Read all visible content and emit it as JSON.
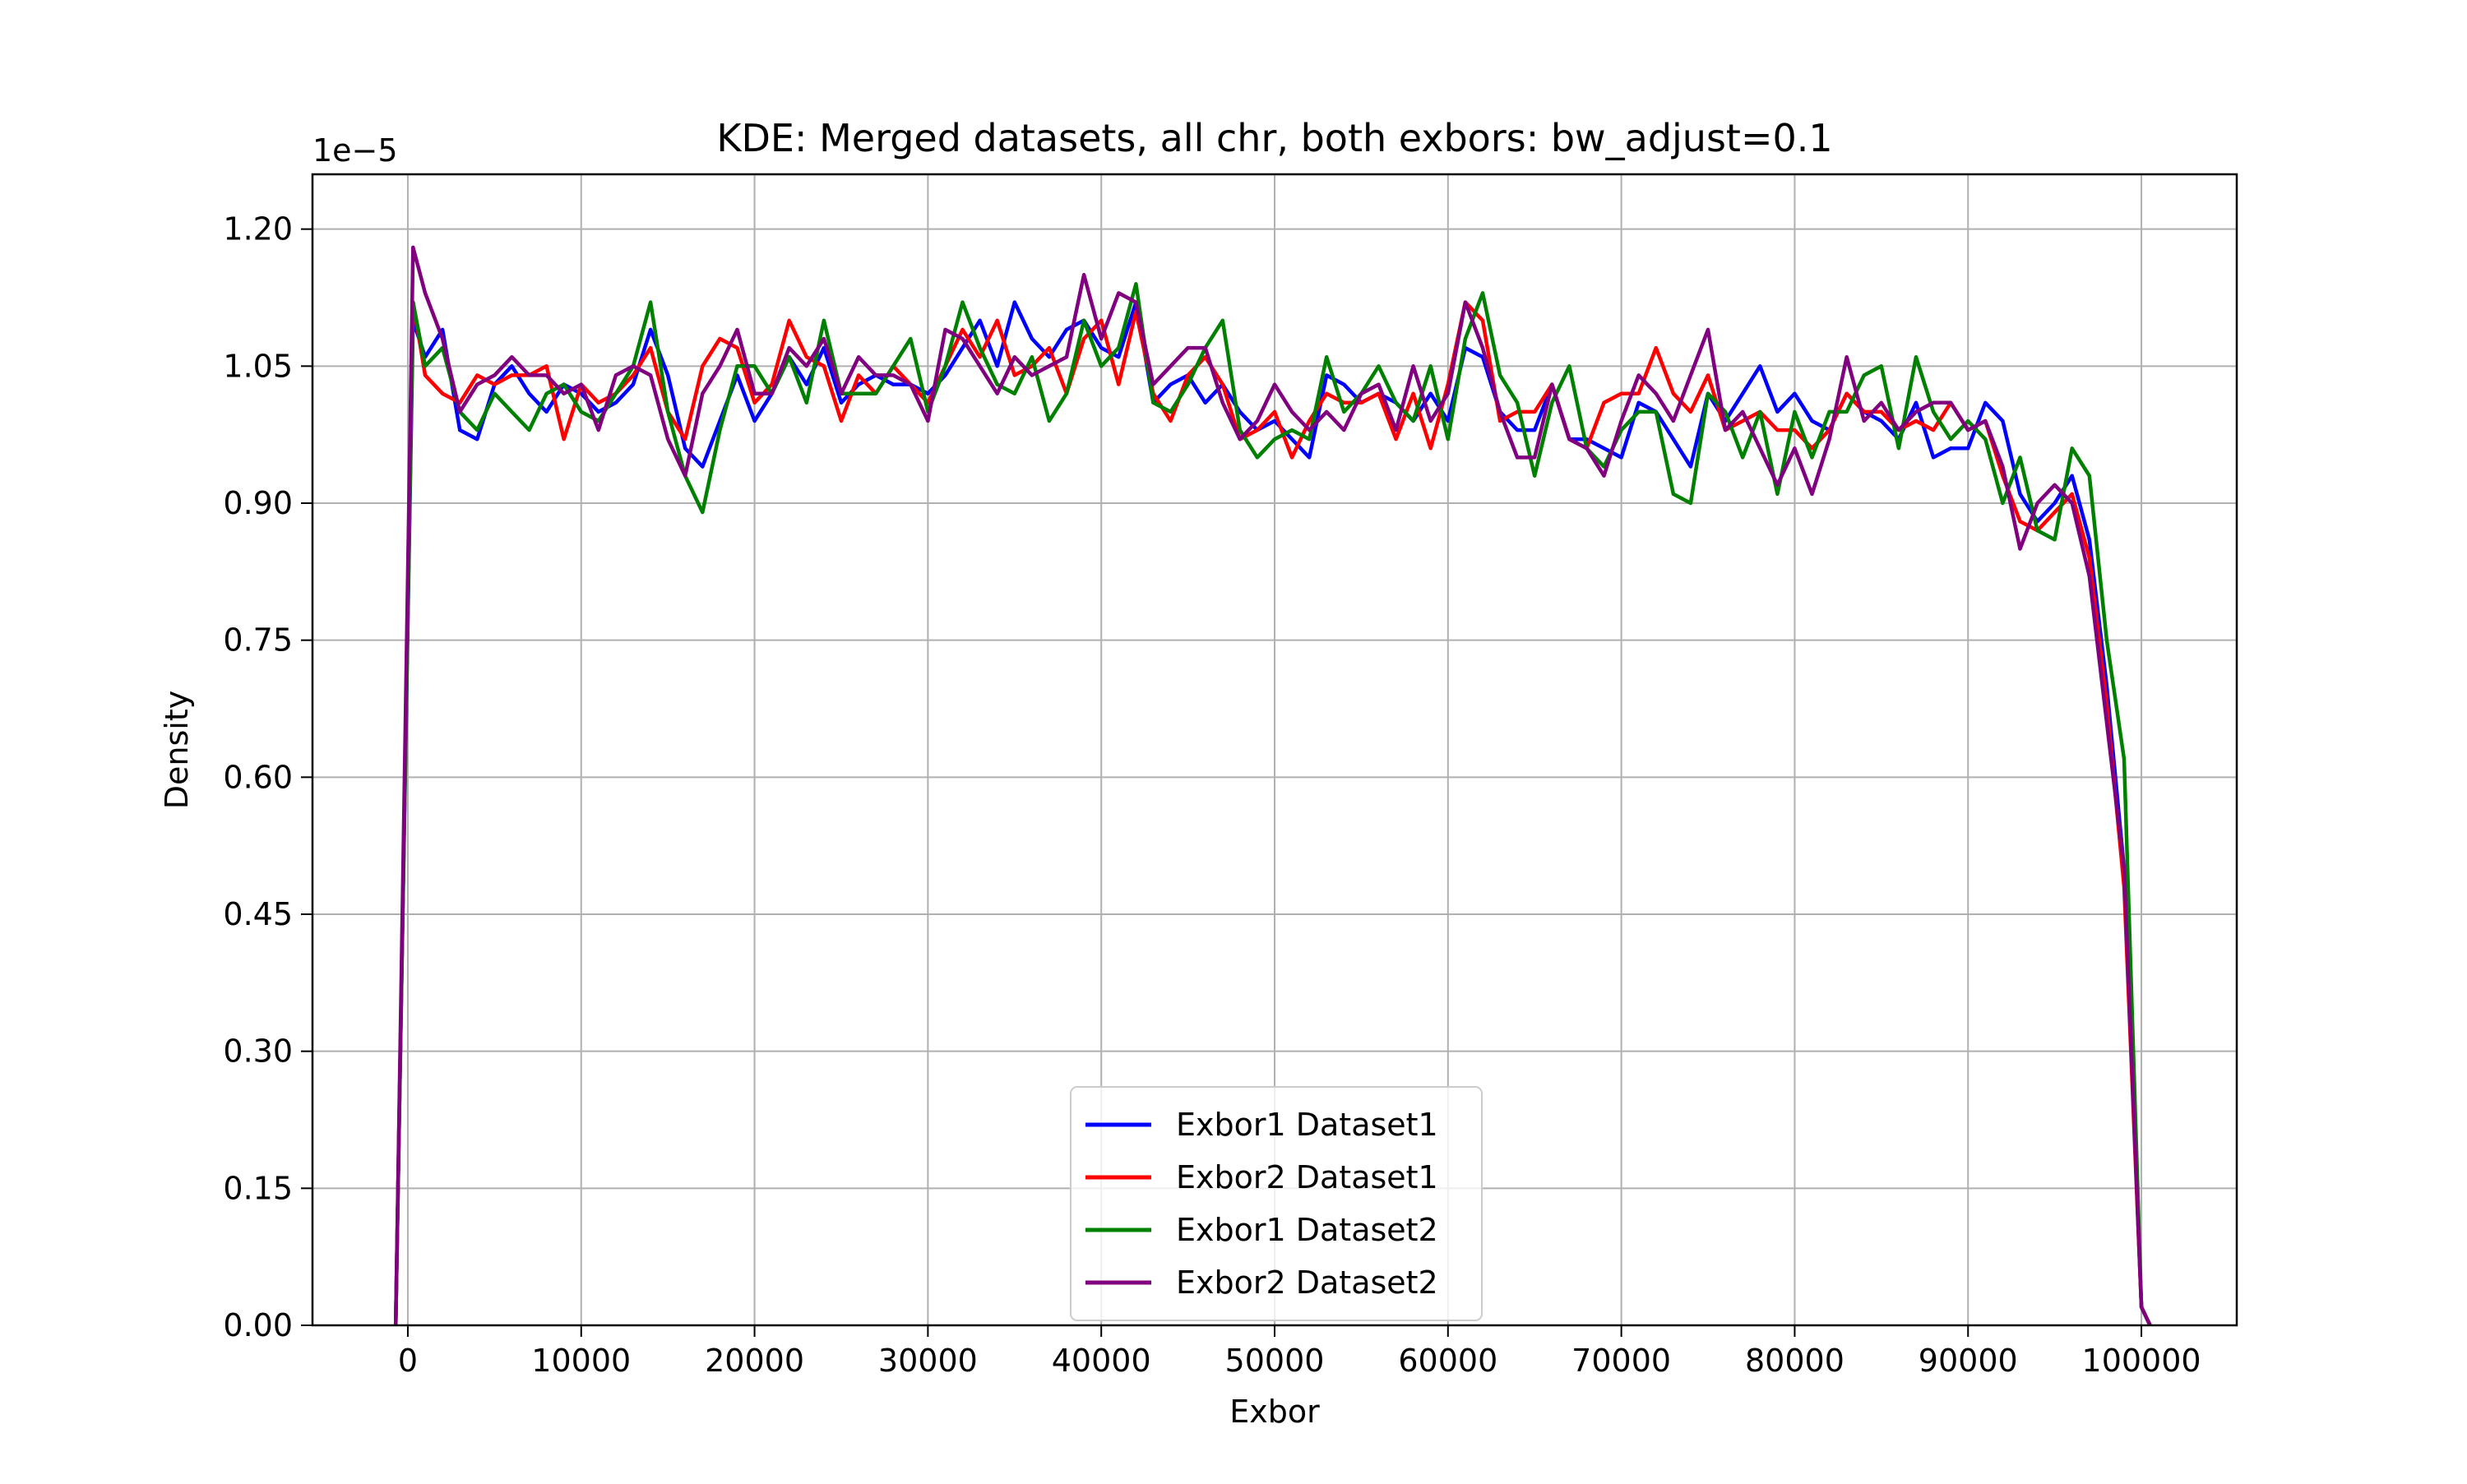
{
  "chart_data": {
    "type": "line",
    "title": "KDE: Merged datasets, all chr, both exbors: bw_adjust=0.1",
    "xlabel": "Exbor",
    "ylabel": "Density",
    "y_offset_label": "1e−5",
    "xlim": [
      -5500,
      105500
    ],
    "ylim": [
      0,
      1.26
    ],
    "x_ticks": [
      0,
      10000,
      20000,
      30000,
      40000,
      50000,
      60000,
      70000,
      80000,
      90000,
      100000
    ],
    "x_tick_labels": [
      "0",
      "10000",
      "20000",
      "30000",
      "40000",
      "50000",
      "60000",
      "70000",
      "80000",
      "90000",
      "100000"
    ],
    "y_ticks": [
      0,
      0.15,
      0.3,
      0.45,
      0.6,
      0.75,
      0.9,
      1.05,
      1.2
    ],
    "y_tick_labels": [
      "0.00",
      "0.15",
      "0.30",
      "0.45",
      "0.60",
      "0.75",
      "0.90",
      "1.05",
      "1.20"
    ],
    "grid": true,
    "legend_position": "bottom-center",
    "x": [
      -700,
      300,
      1000,
      2000,
      3000,
      4000,
      5000,
      6000,
      7000,
      8000,
      9000,
      10000,
      11000,
      12000,
      13000,
      14000,
      15000,
      16000,
      17000,
      18000,
      19000,
      20000,
      21000,
      22000,
      23000,
      24000,
      25000,
      26000,
      27000,
      28000,
      29000,
      30000,
      31000,
      32000,
      33000,
      34000,
      35000,
      36000,
      37000,
      38000,
      39000,
      40000,
      41000,
      42000,
      43000,
      44000,
      45000,
      46000,
      47000,
      48000,
      49000,
      50000,
      51000,
      52000,
      53000,
      54000,
      55000,
      56000,
      57000,
      58000,
      59000,
      60000,
      61000,
      62000,
      63000,
      64000,
      65000,
      66000,
      67000,
      68000,
      69000,
      70000,
      71000,
      72000,
      73000,
      74000,
      75000,
      76000,
      77000,
      78000,
      79000,
      80000,
      81000,
      82000,
      83000,
      84000,
      85000,
      86000,
      87000,
      88000,
      89000,
      90000,
      91000,
      92000,
      93000,
      94000,
      95000,
      96000,
      97000,
      98000,
      99000,
      100000,
      100500
    ],
    "series": [
      {
        "name": "Exbor1 Dataset1",
        "color": "#0000ff",
        "values": [
          0,
          1.1,
          1.06,
          1.09,
          0.98,
          0.97,
          1.03,
          1.05,
          1.02,
          1.0,
          1.03,
          1.02,
          1.0,
          1.01,
          1.03,
          1.09,
          1.04,
          0.96,
          0.94,
          0.99,
          1.04,
          0.99,
          1.02,
          1.06,
          1.03,
          1.07,
          1.01,
          1.03,
          1.04,
          1.03,
          1.03,
          1.02,
          1.04,
          1.07,
          1.1,
          1.05,
          1.12,
          1.08,
          1.06,
          1.09,
          1.1,
          1.07,
          1.06,
          1.12,
          1.01,
          1.03,
          1.04,
          1.01,
          1.03,
          1.0,
          0.98,
          0.99,
          0.97,
          0.95,
          1.04,
          1.03,
          1.01,
          1.02,
          1.01,
          0.99,
          1.02,
          0.99,
          1.07,
          1.06,
          1.0,
          0.98,
          0.98,
          1.03,
          0.97,
          0.97,
          0.96,
          0.95,
          1.01,
          1.0,
          0.97,
          0.94,
          1.02,
          0.99,
          1.02,
          1.05,
          1.0,
          1.02,
          0.99,
          0.98,
          1.02,
          1.0,
          0.99,
          0.97,
          1.01,
          0.95,
          0.96,
          0.96,
          1.01,
          0.99,
          0.91,
          0.88,
          0.9,
          0.93,
          0.86,
          0.7,
          0.5,
          0.02,
          0.0
        ]
      },
      {
        "name": "Exbor2 Dataset1",
        "color": "#ff0000",
        "values": [
          0,
          1.12,
          1.04,
          1.02,
          1.01,
          1.04,
          1.03,
          1.04,
          1.04,
          1.05,
          0.97,
          1.03,
          1.01,
          1.02,
          1.04,
          1.07,
          1.0,
          0.97,
          1.05,
          1.08,
          1.07,
          1.01,
          1.03,
          1.1,
          1.06,
          1.05,
          0.99,
          1.04,
          1.02,
          1.05,
          1.03,
          1.01,
          1.05,
          1.09,
          1.06,
          1.1,
          1.04,
          1.05,
          1.07,
          1.02,
          1.08,
          1.1,
          1.03,
          1.11,
          1.02,
          0.99,
          1.04,
          1.06,
          1.03,
          0.97,
          0.98,
          1.0,
          0.95,
          0.99,
          1.02,
          1.01,
          1.01,
          1.02,
          0.97,
          1.02,
          0.96,
          1.03,
          1.12,
          1.1,
          0.99,
          1.0,
          1.0,
          1.03,
          0.97,
          0.96,
          1.01,
          1.02,
          1.02,
          1.07,
          1.02,
          1.0,
          1.04,
          0.98,
          0.99,
          1.0,
          0.98,
          0.98,
          0.96,
          0.98,
          1.02,
          1.0,
          1.0,
          0.98,
          0.99,
          0.98,
          1.01,
          0.98,
          0.99,
          0.93,
          0.88,
          0.87,
          0.89,
          0.91,
          0.84,
          0.68,
          0.48,
          0.02,
          0.0
        ]
      },
      {
        "name": "Exbor1 Dataset2",
        "color": "#008000",
        "values": [
          0,
          1.12,
          1.05,
          1.07,
          1.0,
          0.98,
          1.02,
          1.0,
          0.98,
          1.02,
          1.03,
          1.0,
          0.99,
          1.02,
          1.05,
          1.12,
          1.0,
          0.93,
          0.89,
          0.98,
          1.05,
          1.05,
          1.02,
          1.06,
          1.01,
          1.1,
          1.02,
          1.02,
          1.02,
          1.05,
          1.08,
          1.0,
          1.05,
          1.12,
          1.07,
          1.03,
          1.02,
          1.06,
          0.99,
          1.02,
          1.1,
          1.05,
          1.07,
          1.14,
          1.01,
          1.0,
          1.03,
          1.07,
          1.1,
          0.98,
          0.95,
          0.97,
          0.98,
          0.97,
          1.06,
          1.0,
          1.02,
          1.05,
          1.01,
          0.99,
          1.05,
          0.97,
          1.08,
          1.13,
          1.04,
          1.01,
          0.93,
          1.01,
          1.05,
          0.96,
          0.94,
          0.98,
          1.0,
          1.0,
          0.91,
          0.9,
          1.02,
          1.0,
          0.95,
          1.0,
          0.91,
          1.0,
          0.95,
          1.0,
          1.0,
          1.04,
          1.05,
          0.96,
          1.06,
          1.0,
          0.97,
          0.99,
          0.97,
          0.9,
          0.95,
          0.87,
          0.86,
          0.96,
          0.93,
          0.75,
          0.62,
          0.02,
          0.0
        ]
      },
      {
        "name": "Exbor2 Dataset2",
        "color": "#800080",
        "values": [
          0,
          1.18,
          1.13,
          1.08,
          1.0,
          1.03,
          1.04,
          1.06,
          1.04,
          1.04,
          1.02,
          1.03,
          0.98,
          1.04,
          1.05,
          1.04,
          0.97,
          0.93,
          1.02,
          1.05,
          1.09,
          1.02,
          1.02,
          1.07,
          1.05,
          1.08,
          1.02,
          1.06,
          1.04,
          1.04,
          1.03,
          0.99,
          1.09,
          1.08,
          1.05,
          1.02,
          1.06,
          1.04,
          1.05,
          1.06,
          1.15,
          1.08,
          1.13,
          1.12,
          1.03,
          1.05,
          1.07,
          1.07,
          1.01,
          0.97,
          0.99,
          1.03,
          1.0,
          0.98,
          1.0,
          0.98,
          1.02,
          1.03,
          0.98,
          1.05,
          0.99,
          1.02,
          1.12,
          1.07,
          1.0,
          0.95,
          0.95,
          1.03,
          0.97,
          0.96,
          0.93,
          0.99,
          1.04,
          1.02,
          0.99,
          1.04,
          1.09,
          0.98,
          1.0,
          0.96,
          0.92,
          0.96,
          0.91,
          0.97,
          1.06,
          0.99,
          1.01,
          0.98,
          1.0,
          1.01,
          1.01,
          0.98,
          0.99,
          0.94,
          0.85,
          0.9,
          0.92,
          0.9,
          0.82,
          0.66,
          0.5,
          0.02,
          0.0
        ]
      }
    ]
  }
}
